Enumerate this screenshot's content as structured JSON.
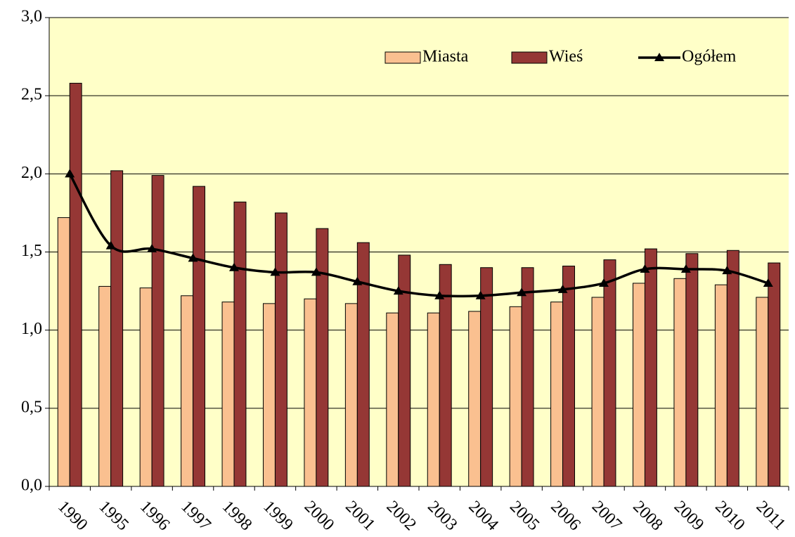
{
  "chart_data": {
    "type": "bar",
    "categories": [
      "1990",
      "1995",
      "1996",
      "1997",
      "1998",
      "1999",
      "2000",
      "2001",
      "2002",
      "2003",
      "2004",
      "2005",
      "2006",
      "2007",
      "2008",
      "2009",
      "2010",
      "2011"
    ],
    "series": [
      {
        "name": "Miasta",
        "color": "#fac090",
        "values": [
          1.72,
          1.28,
          1.27,
          1.22,
          1.18,
          1.17,
          1.2,
          1.17,
          1.11,
          1.11,
          1.12,
          1.15,
          1.18,
          1.21,
          1.3,
          1.33,
          1.29,
          1.21
        ]
      },
      {
        "name": "Wieś",
        "color": "#953735",
        "values": [
          2.58,
          2.02,
          1.99,
          1.92,
          1.82,
          1.75,
          1.65,
          1.56,
          1.48,
          1.42,
          1.4,
          1.4,
          1.41,
          1.45,
          1.52,
          1.49,
          1.51,
          1.43
        ]
      },
      {
        "name": "Ogółem",
        "type": "line",
        "color": "#000000",
        "values": [
          2.0,
          1.54,
          1.52,
          1.46,
          1.4,
          1.37,
          1.37,
          1.31,
          1.25,
          1.22,
          1.22,
          1.24,
          1.26,
          1.3,
          1.39,
          1.39,
          1.38,
          1.3
        ]
      }
    ],
    "ylim": [
      0,
      3
    ],
    "yticks": [
      {
        "value": 0,
        "label": "0,0"
      },
      {
        "value": 0.5,
        "label": "0,5"
      },
      {
        "value": 1,
        "label": "1,0"
      },
      {
        "value": 1.5,
        "label": "1,5"
      },
      {
        "value": 2,
        "label": "2,0"
      },
      {
        "value": 2.5,
        "label": "2,5"
      },
      {
        "value": 3,
        "label": "3,0"
      }
    ],
    "grid": true,
    "legend": "top-right",
    "background": "#ffffc8"
  }
}
